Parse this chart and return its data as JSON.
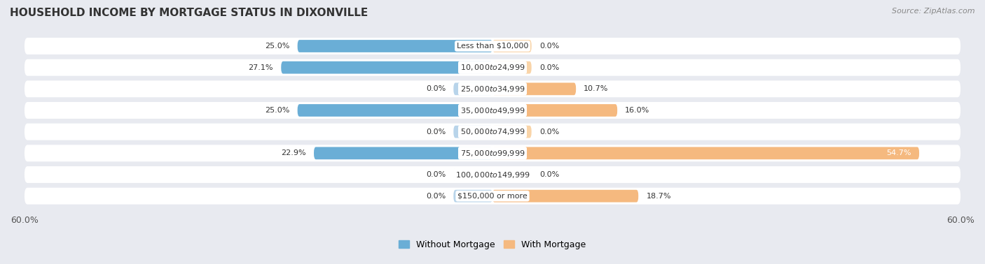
{
  "title": "HOUSEHOLD INCOME BY MORTGAGE STATUS IN DIXONVILLE",
  "source": "Source: ZipAtlas.com",
  "categories": [
    "Less than $10,000",
    "$10,000 to $24,999",
    "$25,000 to $34,999",
    "$35,000 to $49,999",
    "$50,000 to $74,999",
    "$75,000 to $99,999",
    "$100,000 to $149,999",
    "$150,000 or more"
  ],
  "without_mortgage": [
    25.0,
    27.1,
    0.0,
    25.0,
    0.0,
    22.9,
    0.0,
    0.0
  ],
  "with_mortgage": [
    0.0,
    0.0,
    10.7,
    16.0,
    0.0,
    54.7,
    0.0,
    18.7
  ],
  "color_without": "#6aaed6",
  "color_with": "#f5b97f",
  "color_without_light": "#b8d4ea",
  "color_with_light": "#f9d4a8",
  "xlim": 60.0,
  "stub_size": 5.0,
  "bg_color": "#e8eaf0",
  "row_bg_color": "#eceef3",
  "title_fontsize": 11,
  "label_fontsize": 8,
  "tick_fontsize": 9,
  "legend_fontsize": 9
}
